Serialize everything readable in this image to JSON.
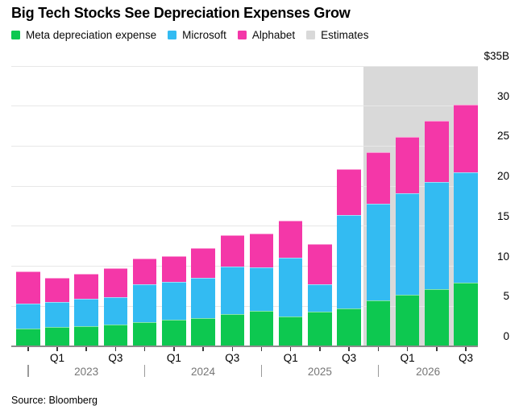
{
  "title": "Big Tech Stocks See Depreciation Expenses Grow",
  "source": "Source: Bloomberg",
  "colors": {
    "meta": "#0dc850",
    "microsoft": "#33bbf2",
    "alphabet": "#f437a8",
    "estimates_band": "#d9d9d9",
    "gridline": "#e7e7e7",
    "baseline": "#8c8c8c"
  },
  "legend": [
    {
      "key": "meta",
      "label": "Meta depreciation expense",
      "color": "#0dc850"
    },
    {
      "key": "microsoft",
      "label": "Microsoft",
      "color": "#33bbf2"
    },
    {
      "key": "alphabet",
      "label": "Alphabet",
      "color": "#f437a8"
    },
    {
      "key": "estimates",
      "label": "Estimates",
      "color": "#d9d9d9"
    }
  ],
  "chart_data": {
    "type": "bar",
    "stacked": true,
    "unit": "$B",
    "title": "Big Tech Stocks See Depreciation Expenses Grow",
    "grid": "horizontal",
    "legend_position": "top",
    "categories": [
      "Q4 2022",
      "Q1 2023",
      "Q2 2023",
      "Q3 2023",
      "Q4 2023",
      "Q1 2024",
      "Q2 2024",
      "Q3 2024",
      "Q4 2024",
      "Q1 2025",
      "Q2 2025",
      "Q3 2025",
      "Q4 2025",
      "Q1 2026",
      "Q2 2026",
      "Q3 2026"
    ],
    "series": [
      {
        "name": "Meta depreciation expense",
        "key": "meta",
        "color": "#0dc850",
        "values": [
          2.2,
          2.4,
          2.5,
          2.7,
          3.0,
          3.3,
          3.5,
          4.0,
          4.4,
          3.7,
          4.3,
          4.7,
          5.7,
          6.4,
          7.1,
          7.9
        ]
      },
      {
        "name": "Microsoft",
        "key": "microsoft",
        "color": "#33bbf2",
        "values": [
          3.1,
          3.1,
          3.4,
          3.4,
          4.7,
          4.7,
          5.0,
          6.0,
          5.5,
          7.4,
          3.4,
          11.7,
          12.1,
          12.7,
          13.4,
          13.8
        ]
      },
      {
        "name": "Alphabet",
        "key": "alphabet",
        "color": "#f437a8",
        "values": [
          4.1,
          3.0,
          3.2,
          3.7,
          3.3,
          3.3,
          3.8,
          3.9,
          4.2,
          4.6,
          5.1,
          5.7,
          6.4,
          7.0,
          7.7,
          8.5
        ]
      }
    ],
    "estimates_region": {
      "label": "Estimates",
      "from_index": 12,
      "from_category": "Q4 2025",
      "color": "#d9d9d9"
    },
    "y_axis": {
      "min": 0,
      "max": 35,
      "step": 5,
      "labels": [
        {
          "value": 35,
          "text": "$35B"
        },
        {
          "value": 30,
          "text": "30"
        },
        {
          "value": 25,
          "text": "25"
        },
        {
          "value": 20,
          "text": "20"
        },
        {
          "value": 15,
          "text": "15"
        },
        {
          "value": 10,
          "text": "10"
        },
        {
          "value": 5,
          "text": "5"
        },
        {
          "value": 0,
          "text": "0"
        }
      ]
    },
    "x_axis": {
      "quarter_ticks": [
        {
          "index": 1,
          "text": "Q1"
        },
        {
          "index": 3,
          "text": "Q3"
        },
        {
          "index": 5,
          "text": "Q1"
        },
        {
          "index": 7,
          "text": "Q3"
        },
        {
          "index": 9,
          "text": "Q1"
        },
        {
          "index": 11,
          "text": "Q3"
        },
        {
          "index": 13,
          "text": "Q1"
        },
        {
          "index": 15,
          "text": "Q3"
        }
      ],
      "year_separator_indices": [
        0,
        4,
        8,
        12
      ],
      "years": [
        {
          "text": "2023"
        },
        {
          "text": "2024"
        },
        {
          "text": "2025"
        },
        {
          "text": "2026"
        }
      ]
    }
  }
}
